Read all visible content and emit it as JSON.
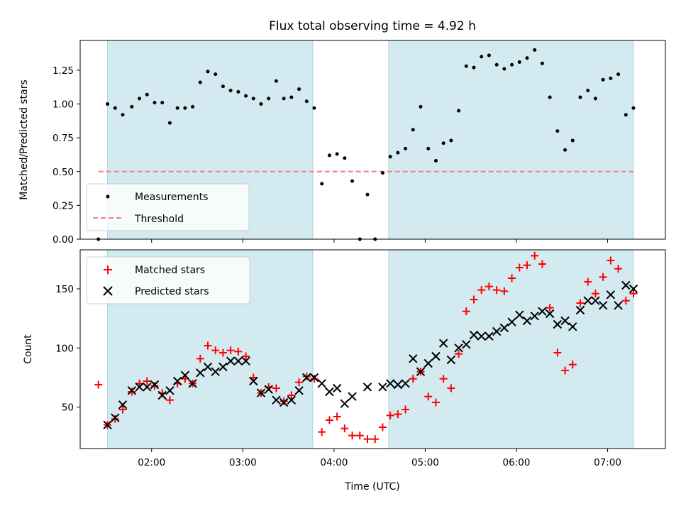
{
  "chart_data": {
    "title": "Flux total observing time = 4.92 h",
    "xlabel": "Time (UTC)",
    "x_ticks": [
      "02:00",
      "03:00",
      "04:00",
      "05:00",
      "06:00",
      "07:00"
    ],
    "observing_windows": [
      [
        "01:31",
        "03:46"
      ],
      [
        "04:36",
        "07:17"
      ]
    ],
    "window_color": "#d3eaf0",
    "panels": [
      {
        "type": "scatter",
        "ylabel": "Matched/Predicted stars",
        "ylim": [
          0,
          1.47
        ],
        "y_ticks": [
          "0.00",
          "0.25",
          "0.50",
          "0.75",
          "1.00",
          "1.25"
        ],
        "legend_position": "lower-left",
        "series": [
          {
            "name": "Measurements",
            "marker": "dot",
            "color": "#000000",
            "x": [
              "01:25",
              "01:31",
              "01:36",
              "01:41",
              "01:47",
              "01:52",
              "01:57",
              "02:02",
              "02:07",
              "02:12",
              "02:17",
              "02:22",
              "02:27",
              "02:32",
              "02:37",
              "02:42",
              "02:47",
              "02:52",
              "02:57",
              "03:02",
              "03:07",
              "03:12",
              "03:17",
              "03:22",
              "03:27",
              "03:32",
              "03:37",
              "03:42",
              "03:47",
              "03:52",
              "03:57",
              "04:02",
              "04:07",
              "04:12",
              "04:17",
              "04:22",
              "04:27",
              "04:32",
              "04:37",
              "04:42",
              "04:47",
              "04:52",
              "04:57",
              "05:02",
              "05:07",
              "05:12",
              "05:17",
              "05:22",
              "05:27",
              "05:32",
              "05:37",
              "05:42",
              "05:47",
              "05:52",
              "05:57",
              "06:02",
              "06:07",
              "06:12",
              "06:17",
              "06:22",
              "06:27",
              "06:32",
              "06:37",
              "06:42",
              "06:47",
              "06:52",
              "06:57",
              "07:02",
              "07:07",
              "07:12",
              "07:17"
            ],
            "y": [
              0.0,
              1.0,
              0.97,
              0.92,
              0.98,
              1.04,
              1.07,
              1.01,
              1.01,
              0.86,
              0.97,
              0.97,
              0.98,
              1.16,
              1.24,
              1.22,
              1.13,
              1.1,
              1.09,
              1.06,
              1.04,
              1.0,
              1.04,
              1.17,
              1.04,
              1.05,
              1.11,
              1.02,
              0.97,
              0.41,
              0.62,
              0.63,
              0.6,
              0.43,
              0.0,
              0.33,
              0.0,
              0.49,
              0.61,
              0.64,
              0.67,
              0.81,
              0.98,
              0.67,
              0.58,
              0.71,
              0.73,
              0.95,
              1.28,
              1.27,
              1.35,
              1.36,
              1.29,
              1.26,
              1.29,
              1.31,
              1.34,
              1.4,
              1.3,
              1.05,
              0.8,
              0.66,
              0.73,
              1.05,
              1.1,
              1.04,
              1.18,
              1.19,
              1.22,
              0.92,
              0.97
            ]
          },
          {
            "name": "Threshold",
            "marker": "dashed-line",
            "color": "#f08080",
            "x": [
              "01:25",
              "07:17"
            ],
            "y": [
              0.5,
              0.5
            ]
          }
        ]
      },
      {
        "type": "scatter",
        "ylabel": "Count",
        "ylim": [
          15,
          183
        ],
        "y_ticks": [
          "50",
          "100",
          "150"
        ],
        "legend_position": "upper-left",
        "series": [
          {
            "name": "Matched stars",
            "marker": "plus",
            "color": "#ff0000",
            "x": [
              "01:25",
              "01:31",
              "01:36",
              "01:41",
              "01:47",
              "01:52",
              "01:57",
              "02:02",
              "02:07",
              "02:12",
              "02:17",
              "02:22",
              "02:27",
              "02:32",
              "02:37",
              "02:42",
              "02:47",
              "02:52",
              "02:57",
              "03:02",
              "03:07",
              "03:12",
              "03:17",
              "03:22",
              "03:27",
              "03:32",
              "03:37",
              "03:42",
              "03:47",
              "03:52",
              "03:57",
              "04:02",
              "04:07",
              "04:12",
              "04:17",
              "04:22",
              "04:27",
              "04:32",
              "04:37",
              "04:42",
              "04:47",
              "04:52",
              "04:57",
              "05:02",
              "05:07",
              "05:12",
              "05:17",
              "05:22",
              "05:27",
              "05:32",
              "05:37",
              "05:42",
              "05:47",
              "05:52",
              "05:57",
              "06:02",
              "06:07",
              "06:12",
              "06:17",
              "06:22",
              "06:27",
              "06:32",
              "06:37",
              "06:42",
              "06:47",
              "06:52",
              "06:57",
              "07:02",
              "07:07",
              "07:12",
              "07:17"
            ],
            "y": [
              69,
              35,
              40,
              48,
              63,
              70,
              72,
              68,
              62,
              56,
              70,
              74,
              70,
              91,
              102,
              98,
              96,
              98,
              97,
              93,
              75,
              62,
              67,
              66,
              55,
              60,
              71,
              76,
              74,
              29,
              39,
              42,
              32,
              26,
              26,
              23,
              23,
              33,
              43,
              44,
              48,
              74,
              80,
              59,
              54,
              74,
              66,
              95,
              131,
              141,
              149,
              152,
              149,
              148,
              159,
              168,
              170,
              178,
              171,
              134,
              96,
              81,
              86,
              138,
              156,
              146,
              160,
              174,
              167,
              140,
              146
            ]
          },
          {
            "name": "Predicted stars",
            "marker": "x",
            "color": "#000000",
            "x": [
              "01:31",
              "01:36",
              "01:41",
              "01:47",
              "01:52",
              "01:57",
              "02:02",
              "02:07",
              "02:12",
              "02:17",
              "02:22",
              "02:27",
              "02:32",
              "02:37",
              "02:42",
              "02:47",
              "02:52",
              "02:57",
              "03:02",
              "03:07",
              "03:12",
              "03:17",
              "03:22",
              "03:27",
              "03:32",
              "03:37",
              "03:42",
              "03:47",
              "03:52",
              "03:57",
              "04:02",
              "04:07",
              "04:12",
              "04:22",
              "04:32",
              "04:37",
              "04:42",
              "04:47",
              "04:52",
              "04:57",
              "05:02",
              "05:07",
              "05:12",
              "05:17",
              "05:22",
              "05:27",
              "05:32",
              "05:37",
              "05:42",
              "05:47",
              "05:52",
              "05:57",
              "06:02",
              "06:07",
              "06:12",
              "06:17",
              "06:22",
              "06:27",
              "06:32",
              "06:37",
              "06:42",
              "06:47",
              "06:52",
              "06:57",
              "07:02",
              "07:07",
              "07:12",
              "07:17"
            ],
            "y": [
              35,
              41,
              52,
              64,
              67,
              67,
              69,
              60,
              64,
              72,
              77,
              70,
              79,
              84,
              80,
              84,
              89,
              89,
              89,
              72,
              62,
              65,
              56,
              54,
              56,
              64,
              75,
              75,
              70,
              63,
              66,
              53,
              59,
              67,
              67,
              70,
              69,
              70,
              91,
              80,
              87,
              93,
              104,
              90,
              100,
              103,
              111,
              110,
              110,
              114,
              117,
              122,
              128,
              123,
              127,
              131,
              129,
              120,
              123,
              118,
              132,
              140,
              140,
              136,
              145,
              136,
              153,
              150
            ]
          }
        ]
      }
    ]
  }
}
